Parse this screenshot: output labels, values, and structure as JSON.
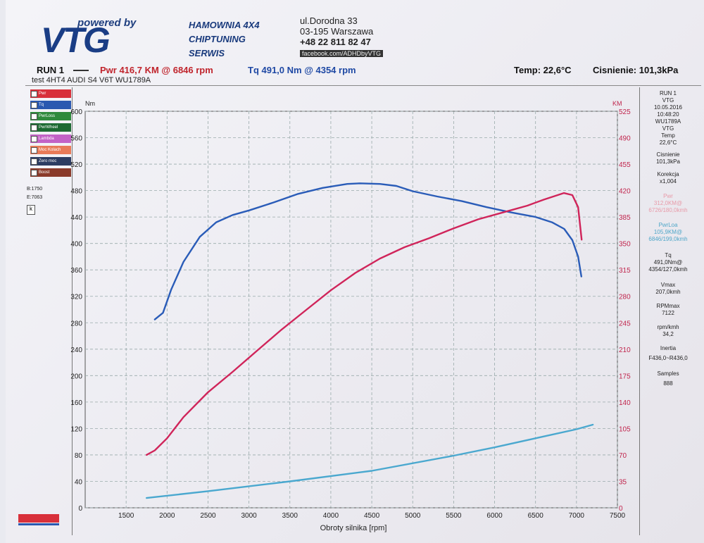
{
  "header": {
    "logo_tagline": "powered by",
    "logo": "VTG",
    "company": [
      "HAMOWNIA 4X4",
      "CHIPTUNING",
      "SERWIS"
    ],
    "address": {
      "street": "ul.Dorodna 33",
      "city": "03-195 Warszawa",
      "phone": "+48 22 811 82 47",
      "facebook": "facebook.com/ADHDbyVTG"
    }
  },
  "run": {
    "label": "RUN 1",
    "power": "Pwr 416,7 KM @ 6846 rpm",
    "torque": "Tq 491,0 Nm @ 4354 rpm",
    "temp": "Temp: 22,6°C",
    "pressure": "Cisnienie: 101,3kPa",
    "description": "test 4HT4 AUDI S4 V6T WU1789A"
  },
  "legend": [
    "Pwr",
    "Tq",
    "PwrLoss",
    "PwrWheel",
    "Lambda",
    "Moc Kolach",
    "Zero moc",
    "Boost"
  ],
  "legend_extra": {
    "b": "B:1750",
    "e": "E:7063",
    "k": "k"
  },
  "results": {
    "run": "RUN 1",
    "vtg1": "VTG",
    "date": "10.05.2016",
    "time": "10:48:20",
    "plate": "WU1789A",
    "vtg2": "VTG",
    "temp_label": "Temp",
    "temp": "22,6°C",
    "press_label": "Cisnienie",
    "press": "101,3kPa",
    "corr_label": "Korekcja",
    "corr": "x1,004",
    "pwr_label": "Pwr",
    "pwr": "312,0KM@",
    "pwr_rpm": "6726/180,0kmh",
    "loss_label": "PwrLoa",
    "loss": "105,9KM@",
    "loss_rpm": "6846/199,0kmh",
    "tq_label": "Tq",
    "tq": "491,0Nm@",
    "tq_rpm": "4354/127,0kmh",
    "vmax_label": "Vmax",
    "vmax": "207,0kmh",
    "rpmmax_label": "RPMmax",
    "rpmmax": "7122",
    "ratio_label": "rpm/kmh",
    "ratio": "34,2",
    "inertia_label": "Inertia",
    "inertia": "F436,0~R436,0",
    "samples_label": "Samples",
    "samples": "888"
  },
  "chart_data": {
    "type": "line",
    "xlabel": "Obroty silnika [rpm]",
    "ylabel": "Nm",
    "y2label": "KM",
    "xlim": [
      1000,
      7500
    ],
    "ylim": [
      0,
      600
    ],
    "y2lim": [
      0,
      525
    ],
    "xticks": [
      1500,
      2000,
      2500,
      3000,
      3500,
      4000,
      4500,
      5000,
      5500,
      6000,
      6500,
      7000,
      7500
    ],
    "yticks": [
      0,
      40,
      80,
      120,
      160,
      200,
      240,
      280,
      320,
      360,
      400,
      440,
      480,
      520,
      560,
      600
    ],
    "y2ticks": [
      0,
      35,
      70,
      105,
      140,
      175,
      210,
      245,
      280,
      315,
      350,
      385,
      420,
      455,
      490,
      525
    ],
    "grid": true,
    "series": [
      {
        "name": "Tq",
        "axis": "left",
        "color": "#2a5cb8",
        "x": [
          1850,
          1950,
          2050,
          2200,
          2400,
          2600,
          2800,
          3000,
          3300,
          3600,
          3900,
          4200,
          4354,
          4600,
          4800,
          5000,
          5300,
          5600,
          5900,
          6200,
          6500,
          6700,
          6850,
          6950,
          7020,
          7060
        ],
        "y": [
          285,
          295,
          330,
          372,
          410,
          432,
          443,
          450,
          462,
          475,
          484,
          490,
          491,
          490,
          487,
          479,
          471,
          464,
          455,
          447,
          440,
          432,
          422,
          405,
          380,
          350
        ]
      },
      {
        "name": "Pwr",
        "axis": "right",
        "color": "#d0245a",
        "x": [
          1750,
          1850,
          2000,
          2200,
          2500,
          2800,
          3100,
          3400,
          3700,
          4000,
          4300,
          4600,
          4900,
          5200,
          5500,
          5800,
          6100,
          6400,
          6600,
          6846,
          6950,
          7020,
          7063
        ],
        "y": [
          70,
          76,
          92,
          120,
          153,
          180,
          208,
          236,
          262,
          288,
          311,
          330,
          345,
          357,
          370,
          382,
          391,
          400,
          408,
          416.7,
          414,
          398,
          355
        ]
      },
      {
        "name": "PwrLoss",
        "axis": "right",
        "color": "#4aa8cf",
        "x": [
          1750,
          2500,
          3500,
          4500,
          5500,
          6000,
          6500,
          7000,
          7200
        ],
        "y": [
          13,
          22,
          35,
          49,
          69,
          80,
          92,
          104,
          110
        ]
      }
    ]
  }
}
